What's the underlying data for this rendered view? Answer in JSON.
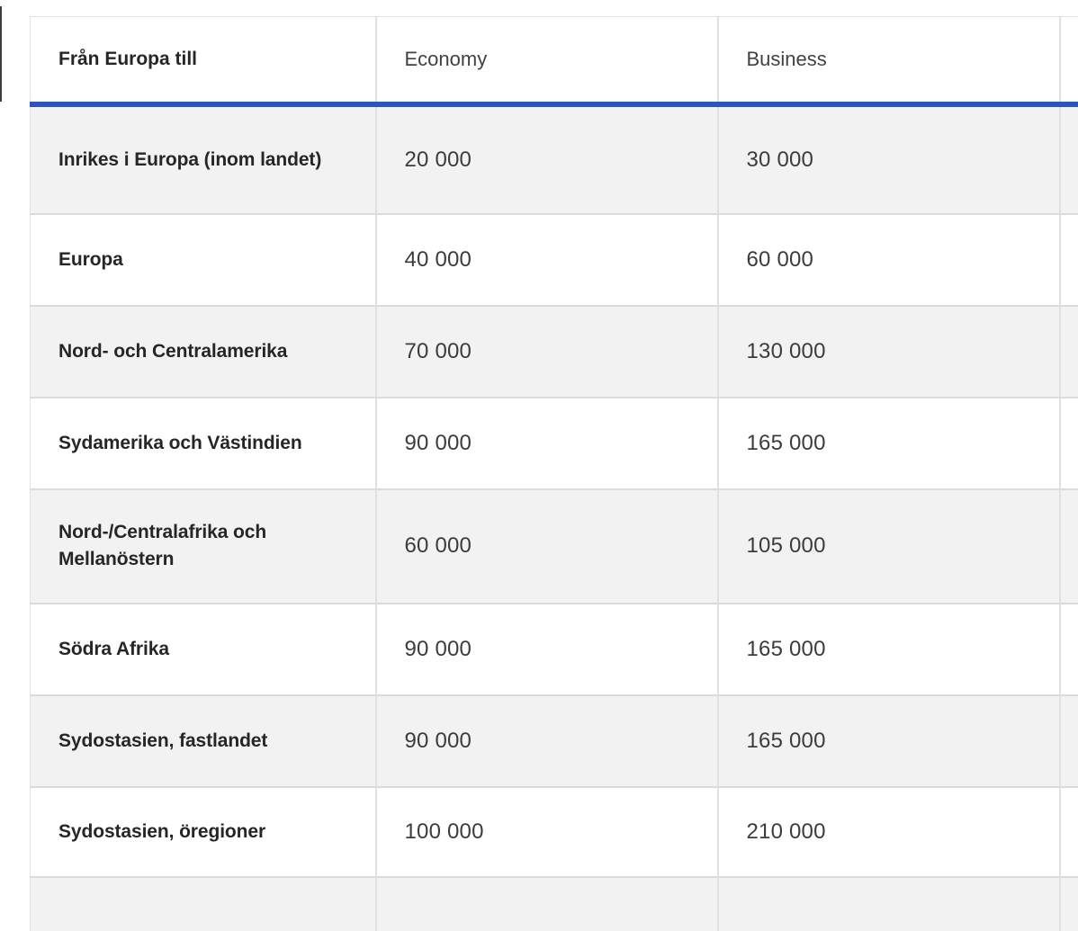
{
  "colors": {
    "accent_blue": "#2b54c0",
    "alt_row_background": "#f2f2f2",
    "grid_border": "#e1e0e0"
  },
  "table": {
    "columns": [
      {
        "label": "Från Europa till"
      },
      {
        "label": "Economy"
      },
      {
        "label": "Business"
      },
      {
        "label": ""
      }
    ],
    "rows": [
      {
        "label": "Inrikes i Europa (inom landet)",
        "economy": "20 000",
        "business": "30 000"
      },
      {
        "label": "Europa",
        "economy": "40 000",
        "business": "60 000"
      },
      {
        "label": "Nord- och Centralamerika",
        "economy": "70 000",
        "business": "130 000"
      },
      {
        "label": "Sydamerika och Västindien",
        "economy": "90 000",
        "business": "165 000"
      },
      {
        "label": "Nord-/Centralafrika och Mellanöstern",
        "economy": "60 000",
        "business": "105 000"
      },
      {
        "label": "Södra Afrika",
        "economy": "90 000",
        "business": "165 000"
      },
      {
        "label": "Sydostasien, fastlandet",
        "economy": "90 000",
        "business": "165 000"
      },
      {
        "label": "Sydostasien, öregioner",
        "economy": "100 000",
        "business": "210 000"
      },
      {
        "label": "",
        "economy": "",
        "business": ""
      }
    ]
  }
}
